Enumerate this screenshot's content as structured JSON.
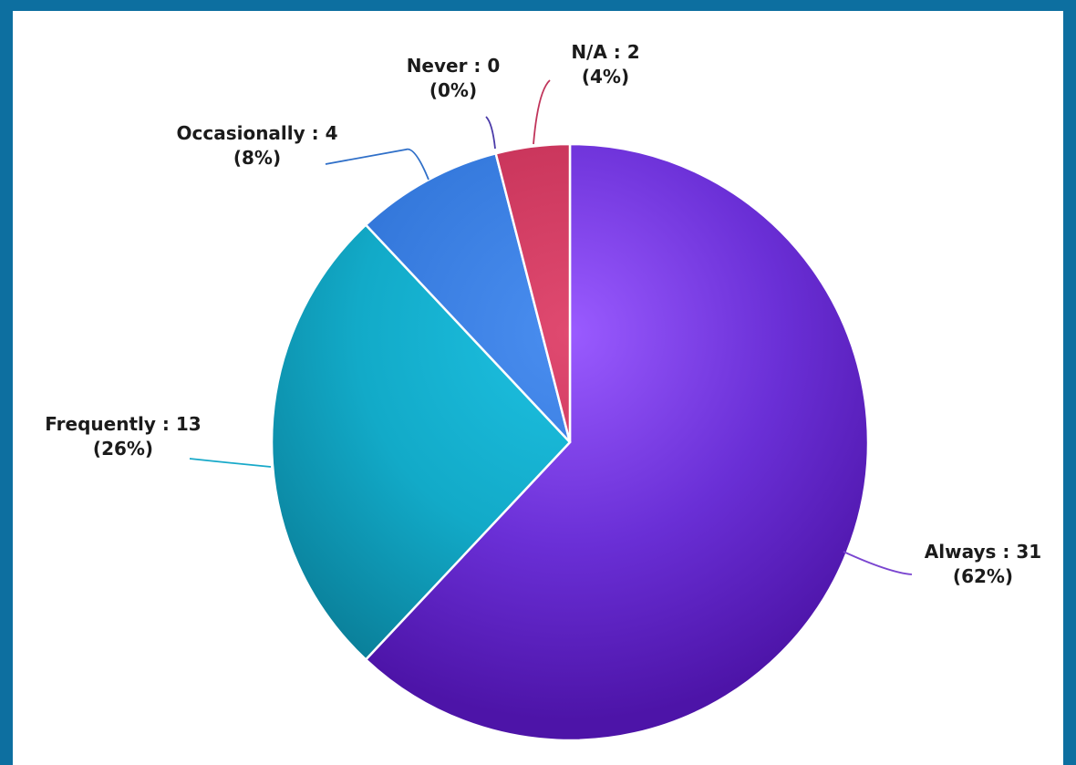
{
  "chart_data": {
    "type": "pie",
    "title": "",
    "label_separator": " : ",
    "slices": [
      {
        "label": "Always",
        "value": 31,
        "percent": "62%",
        "color": "#6a2fd6",
        "color_light": "#9a5bff",
        "color_dark": "#4d14a8",
        "leader_color": "#7a45d0"
      },
      {
        "label": "Frequently",
        "value": 13,
        "percent": "26%",
        "color": "#12aac8",
        "color_light": "#1ec1e2",
        "color_dark": "#0a7f99",
        "leader_color": "#18a9c9"
      },
      {
        "label": "Occasionally",
        "value": 4,
        "percent": "8%",
        "color": "#3579dc",
        "color_light": "#4a8ef0",
        "color_dark": "#2360c0",
        "leader_color": "#2f6fc8"
      },
      {
        "label": "Never",
        "value": 0,
        "percent": "0%",
        "color": "#5b3fc4",
        "color_light": "#6e55d8",
        "color_dark": "#4a32a8",
        "leader_color": "#4a3aa8"
      },
      {
        "label": "N/A",
        "value": 2,
        "percent": "4%",
        "color": "#c8345a",
        "color_light": "#e04a70",
        "color_dark": "#a82548",
        "leader_color": "#c0345a"
      }
    ]
  }
}
